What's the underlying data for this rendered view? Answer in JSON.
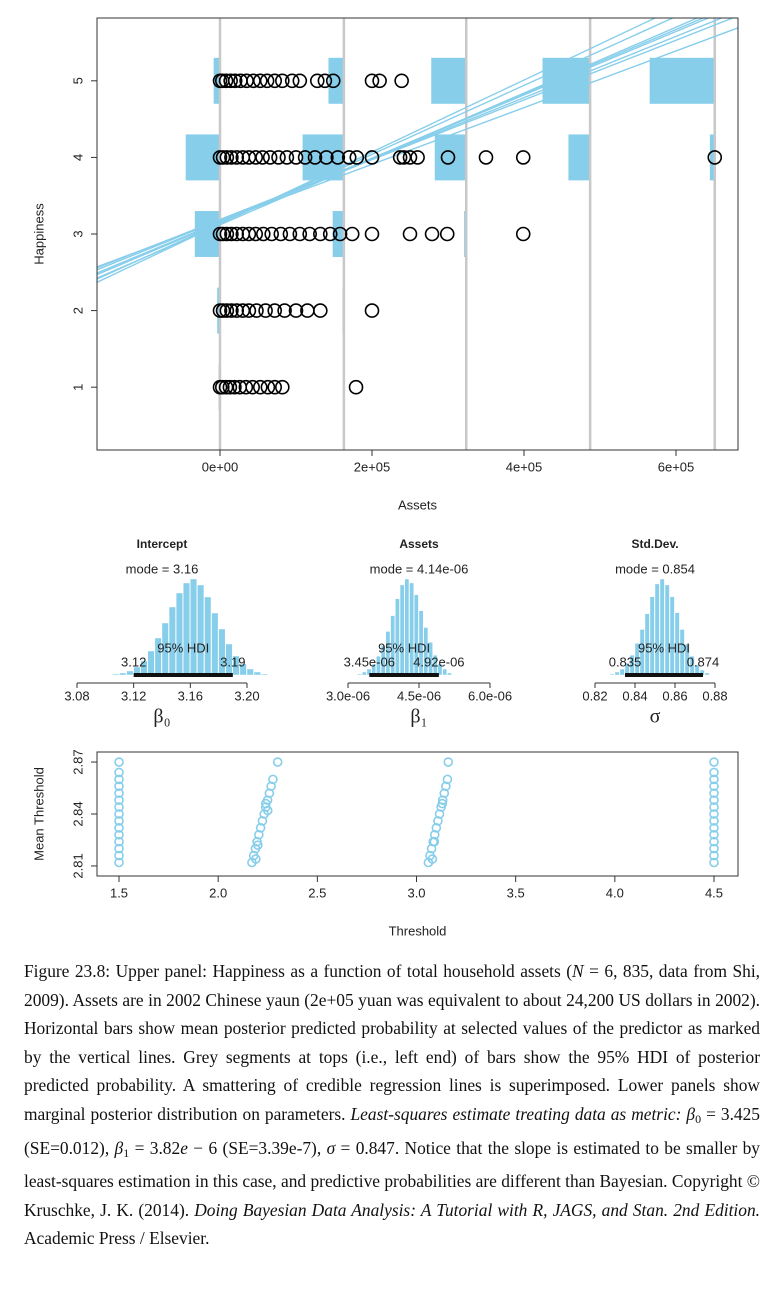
{
  "chart_data": [
    {
      "type": "scatter",
      "xlabel": "Assets",
      "ylabel": "Happiness",
      "color": "#000000",
      "xlim": [
        -161842,
        681579
      ],
      "ylim": [
        0.18,
        5.82
      ],
      "xticks": [
        {
          "value": 0,
          "label": "0e+00"
        },
        {
          "value": 200000,
          "label": "2e+05"
        },
        {
          "value": 400000,
          "label": "4e+05"
        },
        {
          "value": 600000,
          "label": "6e+05"
        }
      ],
      "yticks": [
        1,
        2,
        3,
        4,
        5
      ],
      "points": {
        "x": [
          0,
          3000,
          8000,
          14000,
          20000,
          27000,
          35000,
          44000,
          53000,
          62000,
          72000,
          82000,
          95000,
          105000,
          128000,
          138000,
          149000,
          200000,
          210000,
          239000,
          0,
          4000,
          9000,
          15000,
          22000,
          30000,
          38000,
          47000,
          56000,
          66000,
          77000,
          88000,
          100000,
          112000,
          125000,
          140000,
          155000,
          170000,
          180000,
          200000,
          237000,
          242000,
          250000,
          260000,
          300000,
          350000,
          399000,
          651000,
          0,
          4000,
          9000,
          15000,
          22000,
          30000,
          38000,
          47000,
          57000,
          68000,
          80000,
          92000,
          105000,
          118000,
          132000,
          145000,
          158000,
          174000,
          200000,
          250000,
          279000,
          299000,
          399000,
          0,
          4000,
          9000,
          15000,
          22000,
          30000,
          38000,
          48000,
          60000,
          72000,
          85000,
          100000,
          115000,
          132000,
          200000,
          0,
          3000,
          8000,
          13000,
          19000,
          26000,
          34000,
          43000,
          53000,
          63000,
          72000,
          82000,
          179000
        ],
        "y": [
          5,
          5,
          5,
          5,
          5,
          5,
          5,
          5,
          5,
          5,
          5,
          5,
          5,
          5,
          5,
          5,
          5,
          5,
          5,
          5,
          4,
          4,
          4,
          4,
          4,
          4,
          4,
          4,
          4,
          4,
          4,
          4,
          4,
          4,
          4,
          4,
          4,
          4,
          4,
          4,
          4,
          4,
          4,
          4,
          4,
          4,
          4,
          4,
          3,
          3,
          3,
          3,
          3,
          3,
          3,
          3,
          3,
          3,
          3,
          3,
          3,
          3,
          3,
          3,
          3,
          3,
          3,
          3,
          3,
          3,
          3,
          2,
          2,
          2,
          2,
          2,
          2,
          2,
          2,
          2,
          2,
          2,
          2,
          2,
          2,
          2,
          1,
          1,
          1,
          1,
          1,
          1,
          1,
          1,
          1,
          1,
          1,
          1,
          1
        ]
      },
      "predicted": {
        "color": "#87ceeb",
        "levels": [
          1,
          2,
          3,
          4,
          5
        ],
        "x": [
          0,
          163000,
          324000,
          487000,
          651000
        ],
        "probs": [
          [
            0.02,
            0.04,
            0.36,
            0.49,
            0.09
          ],
          [
            0.01,
            0.02,
            0.16,
            0.59,
            0.22
          ],
          [
            0.01,
            0.01,
            0.03,
            0.45,
            0.5
          ],
          [
            0,
            0,
            0.01,
            0.31,
            0.68
          ],
          [
            0,
            0,
            0,
            0.07,
            0.93
          ]
        ]
      },
      "lines": {
        "color": "#87ceeb",
        "intercept": [
          3.12,
          3.16,
          3.19,
          3.14,
          3.18,
          3.15,
          3.17,
          3.13
        ],
        "slope": [
          4.3e-06,
          4.14e-06,
          3.9e-06,
          4.5e-06,
          4e-06,
          4.2e-06,
          3.7e-06,
          4.7e-06
        ]
      }
    },
    {
      "type": "histogram",
      "title": "Intercept",
      "xlabel": "β₀",
      "color": "#87ceeb",
      "mode_label": "mode = 3.16",
      "hdi_label": "95% HDI",
      "hdi": [
        3.12,
        3.19
      ],
      "xlim": [
        3.08,
        3.2
      ],
      "xticks": [
        3.08,
        3.12,
        3.16,
        {
          "value": 3.2,
          "label": "3.20"
        }
      ],
      "bins": [
        3.105,
        3.11,
        3.115,
        3.12,
        3.125,
        3.13,
        3.135,
        3.14,
        3.145,
        3.15,
        3.155,
        3.16,
        3.165,
        3.17,
        3.175,
        3.18,
        3.185,
        3.19,
        3.195,
        3.2,
        3.205,
        3.21,
        3.215
      ],
      "counts": [
        1,
        2,
        4,
        8,
        14,
        24,
        37,
        52,
        68,
        82,
        92,
        96,
        90,
        78,
        62,
        46,
        31,
        19,
        11,
        6,
        3,
        1
      ]
    },
    {
      "type": "histogram",
      "title": "Assets",
      "xlabel": "β₁",
      "color": "#87ceeb",
      "mode_label": "mode = 4.14e-06",
      "hdi_label": "95% HDI",
      "hdi": [
        {
          "value": 3.45e-06,
          "label": "3.45e-06"
        },
        {
          "value": 4.92e-06,
          "label": "4.92e-06"
        }
      ],
      "xlim": [
        3e-06,
        6e-06
      ],
      "xticks": [
        {
          "value": 3e-06,
          "label": "3.0e-06"
        },
        {
          "value": 4.5e-06,
          "label": "4.5e-06"
        },
        {
          "value": 6e-06,
          "label": "6.0e-06"
        }
      ],
      "bins": [
        3.2e-06,
        3.3e-06,
        3.4e-06,
        3.5e-06,
        3.6e-06,
        3.7e-06,
        3.8e-06,
        3.9e-06,
        4e-06,
        4.1e-06,
        4.2e-06,
        4.3e-06,
        4.4e-06,
        4.5e-06,
        4.6e-06,
        4.7e-06,
        4.8e-06,
        4.9e-06,
        5e-06,
        5.1e-06,
        5.2e-06
      ],
      "counts": [
        1,
        3,
        6,
        11,
        19,
        30,
        44,
        60,
        77,
        91,
        97,
        93,
        81,
        65,
        48,
        33,
        20,
        11,
        6,
        2
      ]
    },
    {
      "type": "histogram",
      "title": "Std.Dev.",
      "xlabel": "σ",
      "color": "#87ceeb",
      "mode_label": "mode = 0.854",
      "hdi_label": "95% HDI",
      "hdi": [
        0.835,
        0.874
      ],
      "xlim": [
        0.82,
        0.88
      ],
      "xticks": [
        0.82,
        0.84,
        0.86,
        0.88
      ],
      "bins": [
        0.8275,
        0.83,
        0.8325,
        0.835,
        0.8375,
        0.84,
        0.8425,
        0.845,
        0.8475,
        0.85,
        0.8525,
        0.855,
        0.8575,
        0.86,
        0.8625,
        0.865,
        0.8675,
        0.87,
        0.8725,
        0.875,
        0.8775
      ],
      "counts": [
        1,
        3,
        6,
        12,
        20,
        32,
        46,
        62,
        79,
        92,
        97,
        91,
        79,
        63,
        46,
        31,
        19,
        10,
        5,
        2
      ]
    },
    {
      "type": "scatter",
      "xlabel": "Threshold",
      "ylabel": "Mean Threshold",
      "color": "#87ceeb",
      "xlim": [
        1.389,
        4.621
      ],
      "ylim": [
        2.8042,
        2.8758
      ],
      "xticks": [
        1.5,
        {
          "value": 2,
          "label": "2.0"
        },
        2.5,
        {
          "value": 3,
          "label": "3.0"
        },
        3.5,
        {
          "value": 4,
          "label": "4.0"
        },
        4.5
      ],
      "yticks": [
        2.81,
        2.84,
        2.87
      ],
      "points": {
        "x": [
          1.5,
          1.5,
          1.5,
          1.5,
          1.5,
          1.5,
          1.5,
          1.5,
          1.5,
          1.5,
          1.5,
          1.5,
          1.5,
          1.5,
          1.5,
          4.5,
          4.5,
          4.5,
          4.5,
          4.5,
          4.5,
          4.5,
          4.5,
          4.5,
          4.5,
          4.5,
          4.5,
          4.5,
          4.5,
          4.5,
          2.17,
          2.179,
          2.188,
          2.196,
          2.205,
          2.214,
          2.223,
          2.232,
          2.24,
          2.249,
          2.258,
          2.267,
          2.276,
          2.3,
          2.19,
          2.2,
          2.24,
          2.25,
          3.06,
          3.068,
          3.076,
          3.084,
          3.092,
          3.1,
          3.108,
          3.116,
          3.124,
          3.132,
          3.14,
          3.148,
          3.156,
          3.16,
          3.08,
          3.09,
          3.13
        ],
        "y": [
          2.812,
          2.816,
          2.82,
          2.824,
          2.828,
          2.832,
          2.836,
          2.84,
          2.844,
          2.848,
          2.852,
          2.856,
          2.86,
          2.864,
          2.87,
          2.812,
          2.816,
          2.82,
          2.824,
          2.828,
          2.832,
          2.836,
          2.84,
          2.844,
          2.848,
          2.852,
          2.856,
          2.86,
          2.864,
          2.87,
          2.812,
          2.816,
          2.82,
          2.824,
          2.828,
          2.832,
          2.836,
          2.84,
          2.844,
          2.848,
          2.852,
          2.856,
          2.86,
          2.87,
          2.814,
          2.822,
          2.846,
          2.842,
          2.812,
          2.816,
          2.82,
          2.824,
          2.828,
          2.832,
          2.836,
          2.84,
          2.844,
          2.848,
          2.852,
          2.856,
          2.86,
          2.87,
          2.814,
          2.824,
          2.846
        ]
      }
    }
  ],
  "caption": {
    "segments": [
      {
        "text": "Figure 23.8: Upper panel: Happiness as a function of total household assets (",
        "style": "normal"
      },
      {
        "text": "N",
        "style": "italic"
      },
      {
        "text": " = 6, 835, data from Shi, 2009). Assets are in 2002 Chinese yaun (2e+05 yuan was equivalent to about 24,200 US dollars in 2002). Horizontal bars show mean posterior predicted probability at selected values of the predictor as marked by the vertical lines. Grey segments at tops (i.e., left end) of bars show the 95% HDI of posterior predicted probability. A smattering of credible regression lines is superimposed. Lower panels show marginal posterior distribution on parameters. ",
        "style": "normal"
      },
      {
        "text": "Least-squares estimate treating data as metric: β",
        "style": "italic"
      },
      {
        "text": "0",
        "style": "sub"
      },
      {
        "text": " = 3.425 (SE=0.012), ",
        "style": "normal"
      },
      {
        "text": "β",
        "style": "italic"
      },
      {
        "text": "1",
        "style": "sub"
      },
      {
        "text": " = 3.82",
        "style": "normal"
      },
      {
        "text": "e",
        "style": "italic"
      },
      {
        "text": " − 6 (SE=3.39e-7), ",
        "style": "normal"
      },
      {
        "text": "σ",
        "style": "italic"
      },
      {
        "text": " = 0.847. Notice that the slope is estimated to be smaller by least-squares estimation in this case, and predictive probabilities are different than Bayesian.   Copyright © Kruschke, J. K. (2014). ",
        "style": "normal"
      },
      {
        "text": "Doing Bayesian Data Analysis: A Tutorial with R, JAGS, and Stan. 2nd Edition.",
        "style": "italic"
      },
      {
        "text": " Academic Press / Elsevier.",
        "style": "normal"
      }
    ]
  }
}
